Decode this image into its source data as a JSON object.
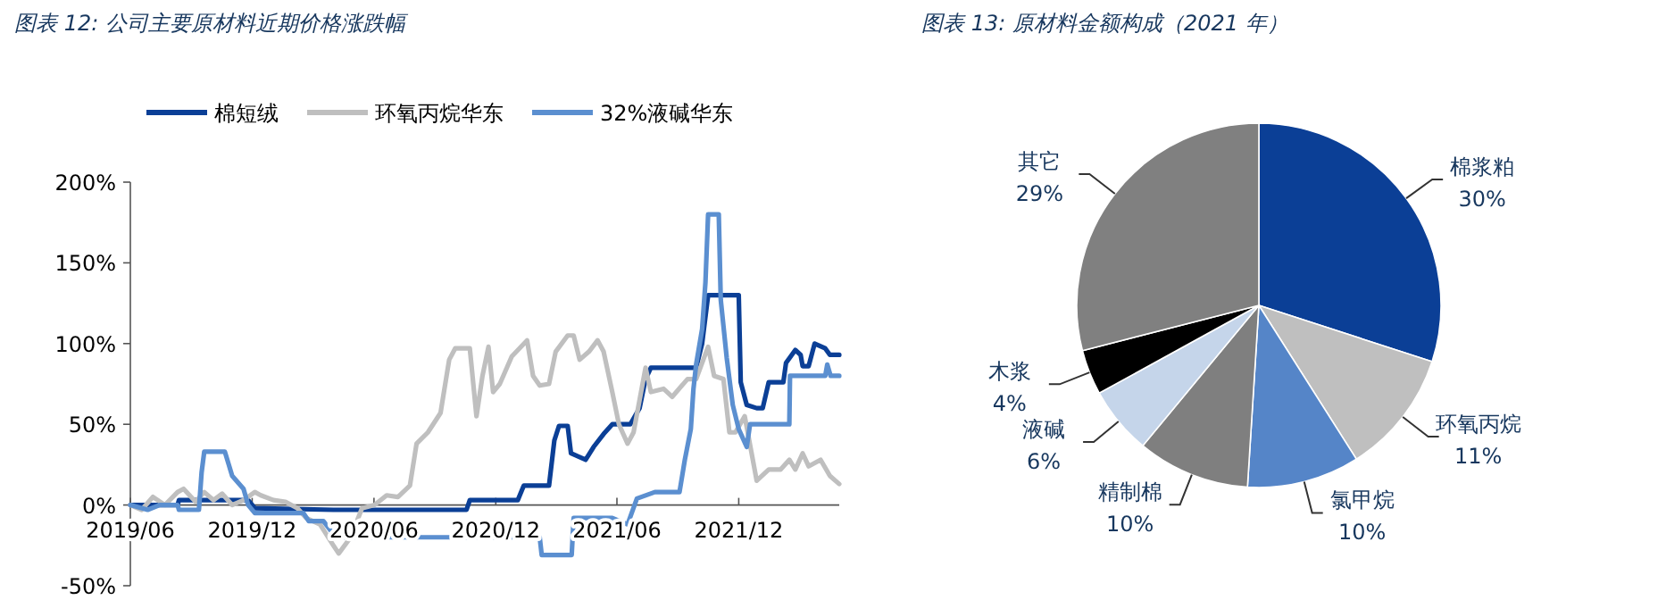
{
  "chart_data": [
    {
      "type": "line",
      "title": "图表 12: 公司主要原材料近期价格涨跌幅",
      "legend": "top",
      "grid": false,
      "marker": "none",
      "line_style": "solid",
      "xlim": [
        "2019-06-01",
        "2022-05-01"
      ],
      "xticks": [
        {
          "value": "2019-06-01",
          "label": "2019/06"
        },
        {
          "value": "2019-12-01",
          "label": "2019/12"
        },
        {
          "value": "2020-06-01",
          "label": "2020/06"
        },
        {
          "value": "2020-12-01",
          "label": "2020/12"
        },
        {
          "value": "2021-06-01",
          "label": "2021/06"
        },
        {
          "value": "2021-12-01",
          "label": "2021/12"
        }
      ],
      "ylim": [
        -50,
        200
      ],
      "yticks": [
        {
          "value": -50,
          "label": "-50%"
        },
        {
          "value": 0,
          "label": "0%"
        },
        {
          "value": 50,
          "label": "50%"
        },
        {
          "value": 100,
          "label": "100%"
        },
        {
          "value": 150,
          "label": "150%"
        },
        {
          "value": 200,
          "label": "200%"
        }
      ],
      "series": [
        {
          "name": "棉短绒",
          "color": "#0b3f96",
          "x": [
            "2019-06-01",
            "2019-08-11",
            "2019-08-13",
            "2019-11-25",
            "2019-12-05",
            "2020-04-01",
            "2020-10-18",
            "2020-10-23",
            "2021-01-03",
            "2021-01-12",
            "2021-02-19",
            "2021-02-27",
            "2021-03-06",
            "2021-03-19",
            "2021-03-24",
            "2021-04-15",
            "2021-04-27",
            "2021-05-12",
            "2021-05-25",
            "2021-06-21",
            "2021-07-05",
            "2021-07-14",
            "2021-07-22",
            "2021-09-28",
            "2021-10-07",
            "2021-10-16",
            "2021-12-01",
            "2021-12-04",
            "2021-12-13",
            "2021-12-28",
            "2022-01-06",
            "2022-01-15",
            "2022-02-06",
            "2022-02-10",
            "2022-02-24",
            "2022-03-04",
            "2022-03-07",
            "2022-03-16",
            "2022-03-25",
            "2022-04-10",
            "2022-04-17",
            "2022-05-01"
          ],
          "values": [
            0,
            0,
            3,
            3,
            -2,
            -3,
            -3,
            3,
            3,
            12,
            12,
            40,
            49,
            49,
            32,
            28,
            36,
            44,
            50,
            50,
            60,
            78,
            85,
            85,
            100,
            130,
            130,
            76,
            62,
            60,
            60,
            76,
            76,
            88,
            96,
            93,
            86,
            86,
            100,
            97,
            93,
            93
          ]
        },
        {
          "name": "环氧丙烷华东",
          "color": "#bfbfbf",
          "x": [
            "2019-06-01",
            "2019-06-18",
            "2019-07-05",
            "2019-07-23",
            "2019-08-11",
            "2019-08-20",
            "2019-09-07",
            "2019-09-20",
            "2019-10-04",
            "2019-10-17",
            "2019-11-01",
            "2019-11-18",
            "2019-12-05",
            "2019-12-14",
            "2020-01-02",
            "2020-01-20",
            "2020-02-07",
            "2020-02-20",
            "2020-03-12",
            "2020-04-01",
            "2020-04-09",
            "2020-04-27",
            "2020-05-14",
            "2020-06-02",
            "2020-06-20",
            "2020-07-07",
            "2020-07-25",
            "2020-08-04",
            "2020-08-21",
            "2020-09-09",
            "2020-09-22",
            "2020-10-01",
            "2020-10-23",
            "2020-11-02",
            "2020-11-11",
            "2020-11-20",
            "2020-11-27",
            "2020-12-07",
            "2020-12-25",
            "2021-01-17",
            "2021-01-26",
            "2021-02-05",
            "2021-02-19",
            "2021-03-01",
            "2021-03-19",
            "2021-03-28",
            "2021-04-06",
            "2021-04-20",
            "2021-05-03",
            "2021-05-12",
            "2021-05-25",
            "2021-06-04",
            "2021-06-17",
            "2021-06-26",
            "2021-07-14",
            "2021-07-22",
            "2021-08-10",
            "2021-08-23",
            "2021-09-15",
            "2021-09-28",
            "2021-10-16",
            "2021-10-25",
            "2021-11-08",
            "2021-11-17",
            "2021-11-26",
            "2021-12-10",
            "2021-12-28",
            "2022-01-15",
            "2022-02-02",
            "2022-02-15",
            "2022-02-24",
            "2022-03-07",
            "2022-03-16",
            "2022-04-03",
            "2022-04-17",
            "2022-05-01"
          ],
          "values": [
            0,
            -3,
            5,
            0,
            8,
            10,
            2,
            8,
            3,
            7,
            0,
            3,
            8,
            6,
            3,
            2,
            -2,
            -8,
            -12,
            -25,
            -30,
            -20,
            -2,
            0,
            6,
            5,
            12,
            38,
            45,
            57,
            90,
            97,
            97,
            55,
            80,
            98,
            70,
            75,
            92,
            102,
            80,
            74,
            75,
            95,
            105,
            105,
            90,
            95,
            102,
            95,
            70,
            50,
            38,
            45,
            85,
            70,
            72,
            67,
            78,
            78,
            98,
            80,
            78,
            45,
            45,
            55,
            15,
            22,
            22,
            28,
            22,
            32,
            24,
            28,
            18,
            13
          ]
        },
        {
          "name": "32%液碱华东",
          "color": "#5b8fd0",
          "x": [
            "2019-06-01",
            "2019-06-27",
            "2019-07-15",
            "2019-08-11",
            "2019-08-13",
            "2019-09-12",
            "2019-09-16",
            "2019-09-20",
            "2019-10-21",
            "2019-11-01",
            "2019-11-18",
            "2019-11-25",
            "2019-12-05",
            "2020-02-16",
            "2020-02-24",
            "2020-03-17",
            "2020-04-01",
            "2020-04-13",
            "2021-02-05",
            "2021-02-08",
            "2021-03-25",
            "2021-03-28",
            "2021-05-25",
            "2021-06-17",
            "2021-07-01",
            "2021-07-28",
            "2021-09-03",
            "2021-09-11",
            "2021-09-20",
            "2021-09-24",
            "2021-09-28",
            "2021-10-07",
            "2021-10-12",
            "2021-10-16",
            "2021-11-01",
            "2021-11-04",
            "2021-11-13",
            "2021-11-22",
            "2021-12-01",
            "2021-12-13",
            "2021-12-18",
            "2022-02-15",
            "2022-02-16",
            "2022-04-10",
            "2022-04-13",
            "2022-04-18",
            "2022-05-01"
          ],
          "values": [
            0,
            -3,
            0,
            0,
            -3,
            -3,
            20,
            33,
            33,
            18,
            10,
            0,
            -5,
            -5,
            -10,
            -10,
            -18,
            -20,
            -20,
            -31,
            -31,
            -8,
            -8,
            -12,
            4,
            8,
            8,
            28,
            47,
            72,
            87,
            109,
            138,
            180,
            180,
            127,
            91,
            62,
            47,
            36,
            50,
            50,
            80,
            80,
            87,
            80,
            80
          ]
        }
      ]
    },
    {
      "type": "pie",
      "title": "图表 13: 原材料金额构成（2021 年）",
      "categories": [
        "棉浆粕",
        "环氧丙烷",
        "氯甲烷",
        "精制棉",
        "液碱",
        "木浆",
        "其它"
      ],
      "values": [
        30,
        11,
        10,
        10,
        6,
        4,
        29
      ],
      "value_labels": [
        "30%",
        "11%",
        "10%",
        "10%",
        "6%",
        "4%",
        "29%"
      ],
      "colors": [
        "#0b3f96",
        "#bfbfbf",
        "#5585c8",
        "#7f7f7f",
        "#c5d5ea",
        "#000000",
        "#808080"
      ]
    }
  ]
}
